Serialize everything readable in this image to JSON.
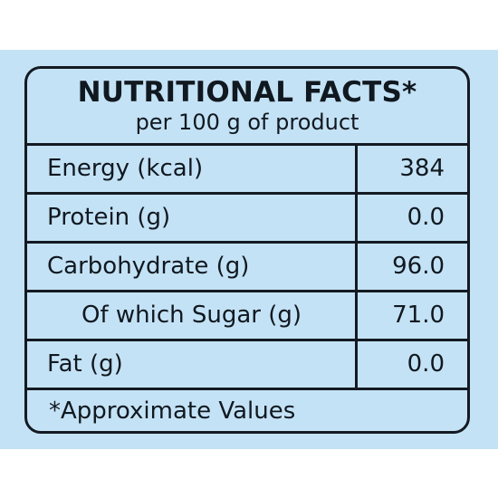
{
  "panel": {
    "title": "NUTRITIONAL FACTS*",
    "subtitle": "per 100 g of product",
    "background": "#c4e2f5",
    "border_color": "#141a22"
  },
  "rows": [
    {
      "label": "Energy (kcal)",
      "value": "384"
    },
    {
      "label": "Protein (g)",
      "value": "0.0"
    },
    {
      "label": "Carbohydrate (g)",
      "value": "96.0"
    },
    {
      "label": "Of which Sugar (g)",
      "value": "71.0"
    },
    {
      "label": "Fat (g)",
      "value": "0.0"
    }
  ],
  "footnote": "*Approximate Values"
}
